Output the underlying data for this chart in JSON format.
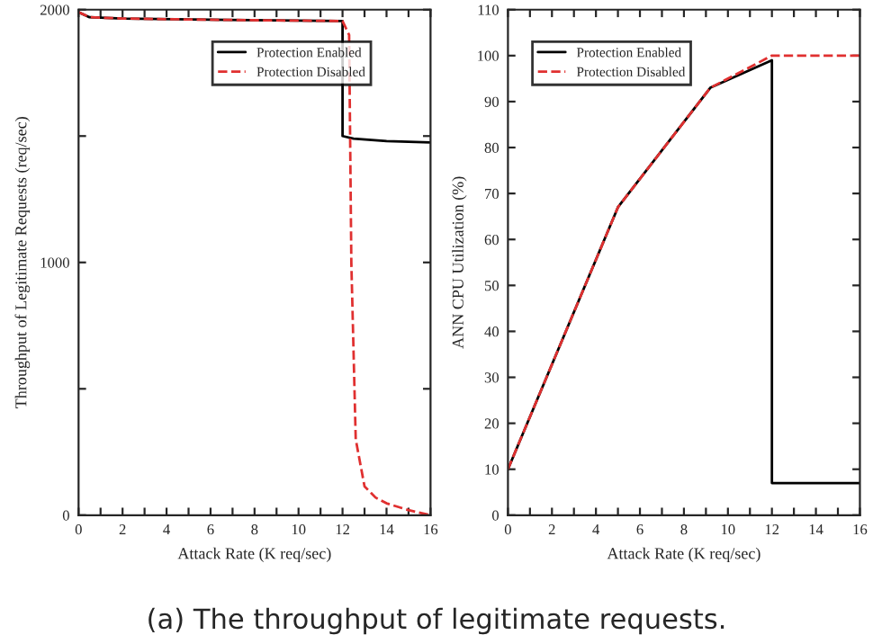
{
  "chart_data": [
    {
      "type": "line",
      "xlabel": "Attack Rate (K req/sec)",
      "ylabel": "Throughput of Legitimate Requests (req/sec)",
      "xlim": [
        0,
        16
      ],
      "ylim": [
        0,
        2000
      ],
      "xticks": [
        0,
        {
          "value": 1,
          "label": null
        },
        2,
        {
          "value": 3,
          "label": null
        },
        4,
        {
          "value": 5,
          "label": null
        },
        6,
        {
          "value": 7,
          "label": null
        },
        8,
        {
          "value": 9,
          "label": null
        },
        10,
        {
          "value": 11,
          "label": null
        },
        12,
        {
          "value": 13,
          "label": null
        },
        14,
        {
          "value": 15,
          "label": null
        },
        16
      ],
      "yticks": [
        0,
        {
          "value": 500,
          "label": null
        },
        1000,
        {
          "value": 1500,
          "label": null
        },
        2000
      ],
      "legend": "top right",
      "grid": false,
      "series": [
        {
          "name": "Protection Enabled",
          "color": "#000000",
          "line_style": "solid",
          "x": [
            0,
            0.5,
            2,
            6,
            12,
            12,
            12.5,
            14,
            16
          ],
          "values": [
            1990,
            1970,
            1965,
            1960,
            1955,
            1500,
            1490,
            1480,
            1475
          ]
        },
        {
          "name": "Protection Disabled",
          "color": "#e03030",
          "line_style": "dashed",
          "x": [
            0,
            0.5,
            2,
            6,
            12,
            12.3,
            12.4,
            12.6,
            13,
            13.5,
            14,
            15,
            16
          ],
          "values": [
            1990,
            1970,
            1965,
            1960,
            1955,
            1900,
            1000,
            300,
            114,
            70,
            47,
            20,
            0
          ]
        }
      ],
      "annotations": [
        "(a) The throughput of legitimate requests."
      ]
    },
    {
      "type": "line",
      "xlabel": "Attack Rate (K req/sec)",
      "ylabel": "ANN CPU Utilization (%)",
      "xlim": [
        0,
        16
      ],
      "ylim": [
        0,
        110
      ],
      "xticks": [
        0,
        {
          "value": 1,
          "label": null
        },
        2,
        {
          "value": 3,
          "label": null
        },
        4,
        {
          "value": 5,
          "label": null
        },
        6,
        {
          "value": 7,
          "label": null
        },
        8,
        {
          "value": 9,
          "label": null
        },
        10,
        {
          "value": 11,
          "label": null
        },
        12,
        {
          "value": 13,
          "label": null
        },
        14,
        {
          "value": 15,
          "label": null
        },
        16
      ],
      "yticks": [
        0,
        10,
        20,
        30,
        40,
        50,
        60,
        70,
        80,
        90,
        100,
        110
      ],
      "legend": "top left",
      "grid": false,
      "series": [
        {
          "name": "Protection Enabled",
          "color": "#000000",
          "line_style": "solid",
          "x": [
            0,
            5,
            9.2,
            12,
            12,
            16
          ],
          "values": [
            10,
            67,
            93,
            99,
            7,
            7
          ]
        },
        {
          "name": "Protection Disabled",
          "color": "#e03030",
          "line_style": "dashed",
          "x": [
            0,
            5,
            9.2,
            12,
            16
          ],
          "values": [
            10,
            67,
            93,
            100,
            100
          ]
        }
      ]
    }
  ]
}
